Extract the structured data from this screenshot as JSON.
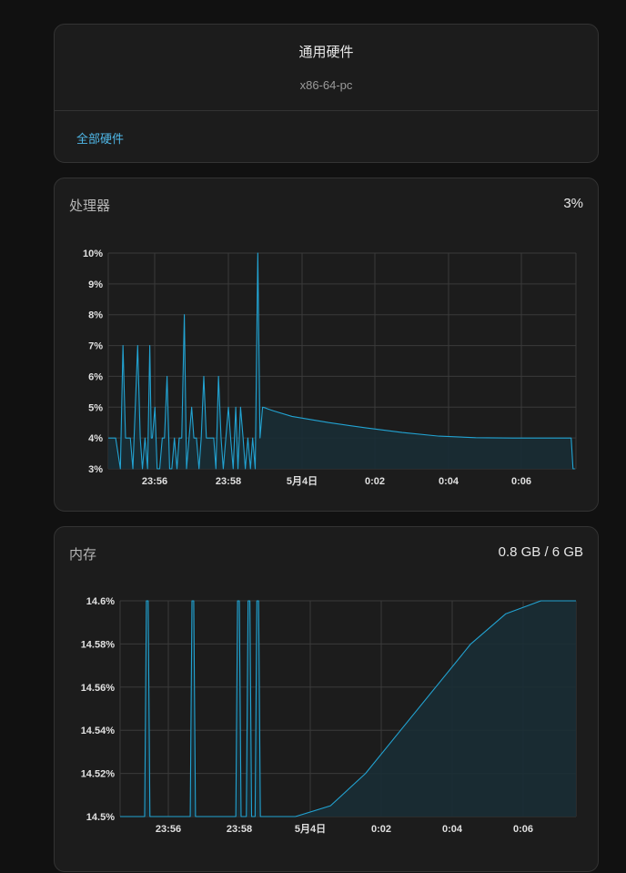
{
  "device": {
    "title": "通用硬件",
    "subtitle": "x86-64-pc",
    "link": "全部硬件"
  },
  "cpu": {
    "label": "处理器",
    "value": "3%"
  },
  "memory": {
    "label": "内存",
    "value": "0.8 GB / 6 GB"
  },
  "colors": {
    "line": "#22a3d2",
    "fill": "#1a2e35",
    "grid": "#3a3a3a"
  },
  "chart_data": [
    {
      "type": "area",
      "series": [
        {
          "x": [
            0,
            0.2,
            0.33,
            0.4,
            0.47,
            0.53,
            0.6,
            0.67,
            0.8,
            0.87,
            0.93,
            1.0,
            1.07,
            1.13,
            1.17,
            1.2,
            1.27,
            1.33,
            1.4,
            1.47,
            1.53,
            1.6,
            1.67,
            1.73,
            1.8,
            1.87,
            1.93,
            2.0,
            2.07,
            2.13,
            2.2,
            2.27,
            2.33,
            2.4,
            2.47,
            2.53,
            2.6,
            2.67,
            2.73,
            2.8,
            2.87,
            2.93,
            3.0,
            3.07,
            3.13,
            3.2,
            3.27,
            3.33,
            3.4,
            3.47,
            3.53,
            3.6,
            3.67,
            3.73,
            3.8,
            3.87,
            3.93,
            4.0,
            4.07,
            4.13,
            4.2,
            4.27,
            4.33,
            4.4,
            4.5,
            5,
            6,
            7,
            8,
            9,
            10,
            11,
            12,
            12.6,
            12.65,
            12.7
          ],
          "y": [
            4,
            4,
            3,
            7,
            4,
            4,
            4,
            3,
            7,
            4,
            3,
            4,
            3,
            7,
            4,
            4,
            5,
            3,
            3,
            4,
            4,
            6,
            3,
            3,
            4,
            3,
            4,
            4,
            8,
            3,
            4,
            5,
            4,
            4,
            3,
            4,
            6,
            4,
            4,
            4,
            4,
            3,
            6,
            4,
            3,
            4,
            5,
            4,
            3,
            5,
            3,
            5,
            4,
            3,
            4,
            3,
            4,
            3,
            10,
            4,
            5,
            4.98,
            4.95,
            4.92,
            4.88,
            4.7,
            4.5,
            4.33,
            4.18,
            4.06,
            4.01,
            4.0,
            4.0,
            4.0,
            3.0,
            3.0
          ]
        }
      ],
      "x_tick_labels": [
        "23:56",
        "23:58",
        "5月4日",
        "0:02",
        "0:04",
        "0:06"
      ],
      "y_tick_labels": [
        "3%",
        "4%",
        "5%",
        "6%",
        "7%",
        "8%",
        "9%",
        "10%"
      ],
      "ylim": [
        3,
        10
      ],
      "grid": true
    },
    {
      "type": "area",
      "series": [
        {
          "x": [
            0,
            0.7,
            0.75,
            0.8,
            0.85,
            2.0,
            2.05,
            2.1,
            2.15,
            3.3,
            3.35,
            3.4,
            3.45,
            3.6,
            3.65,
            3.7,
            3.75,
            3.85,
            3.9,
            3.95,
            4,
            4.5,
            5,
            6,
            7,
            8,
            9,
            10,
            11,
            12,
            13
          ],
          "y": [
            14.5,
            14.5,
            14.6,
            14.6,
            14.5,
            14.5,
            14.6,
            14.6,
            14.5,
            14.5,
            14.6,
            14.6,
            14.5,
            14.5,
            14.6,
            14.6,
            14.5,
            14.5,
            14.6,
            14.6,
            14.5,
            14.5,
            14.5,
            14.505,
            14.52,
            14.54,
            14.56,
            14.58,
            14.594,
            14.6,
            14.6
          ]
        }
      ],
      "x_tick_labels": [
        "23:56",
        "23:58",
        "5月4日",
        "0:02",
        "0:04",
        "0:06"
      ],
      "y_tick_labels": [
        "14.5%",
        "14.52%",
        "14.54%",
        "14.56%",
        "14.58%",
        "14.6%"
      ],
      "ylim": [
        14.5,
        14.6
      ],
      "grid": true
    }
  ]
}
